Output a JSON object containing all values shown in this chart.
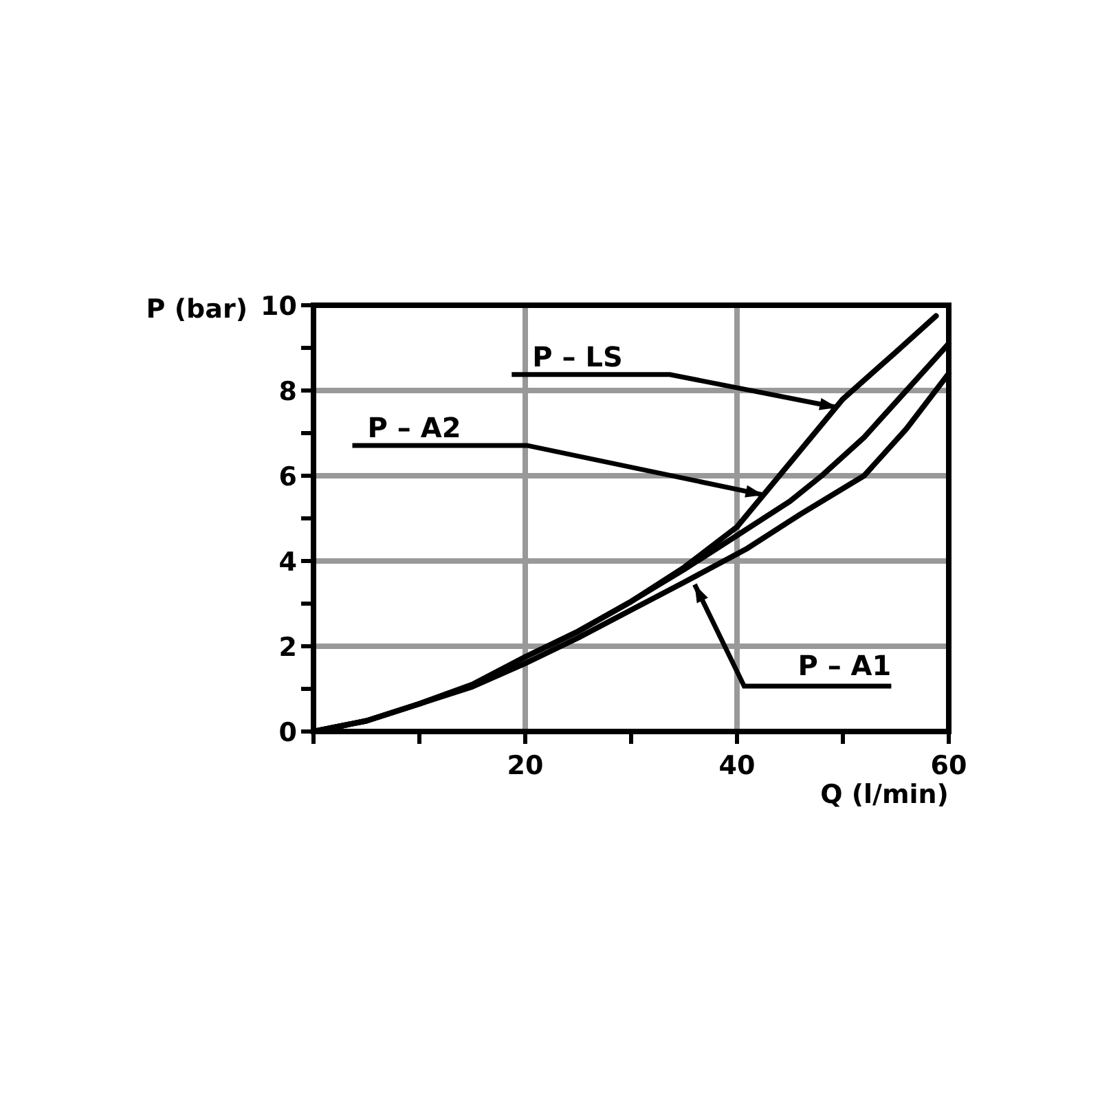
{
  "chart_data": {
    "type": "line",
    "xlabel": "Q (l/min)",
    "ylabel": "P (bar)",
    "xlim": [
      0,
      60
    ],
    "ylim": [
      0,
      10
    ],
    "xticks": [
      {
        "value": 0,
        "label": null
      },
      {
        "value": 10,
        "label": null
      },
      20,
      {
        "value": 30,
        "label": null
      },
      40,
      {
        "value": 50,
        "label": null
      },
      60
    ],
    "yticks": [
      0,
      {
        "value": 1,
        "label": null
      },
      2,
      {
        "value": 3,
        "label": null
      },
      4,
      {
        "value": 5,
        "label": null
      },
      6,
      {
        "value": 7,
        "label": null
      },
      8,
      {
        "value": 9,
        "label": null
      },
      10
    ],
    "grid": true,
    "line_style": "solid",
    "marker": "none",
    "series": [
      {
        "color": "#000000",
        "x": [
          0,
          5,
          10,
          15,
          20,
          25,
          30,
          35,
          40,
          45,
          50,
          55,
          58.8
        ],
        "values": [
          0,
          0.25,
          0.65,
          1.1,
          1.75,
          2.35,
          3.05,
          3.85,
          4.8,
          6.3,
          7.8,
          8.9,
          9.75
        ]
      },
      {
        "color": "#000000",
        "x": [
          0,
          5,
          10,
          15,
          20,
          25,
          30,
          35,
          40,
          45,
          48,
          52,
          56,
          60
        ],
        "values": [
          0,
          0.25,
          0.65,
          1.1,
          1.75,
          2.35,
          3.05,
          3.8,
          4.6,
          5.4,
          6,
          6.9,
          8,
          9.1
        ]
      },
      {
        "color": "#000000",
        "x": [
          0,
          5,
          10,
          15,
          20,
          25,
          30,
          35,
          41,
          46,
          52,
          56,
          60
        ],
        "values": [
          0,
          0.25,
          0.65,
          1.05,
          1.6,
          2.2,
          2.85,
          3.5,
          4.3,
          5.1,
          6,
          7.1,
          8.4
        ]
      }
    ],
    "annotations": [
      {
        "text": "P – LS",
        "x": 49.5,
        "y": 7.6
      },
      {
        "text": "P – A2",
        "x": 42.5,
        "y": 5.55
      },
      {
        "text": "P – A1",
        "x": 36,
        "y": 3.45
      }
    ]
  }
}
